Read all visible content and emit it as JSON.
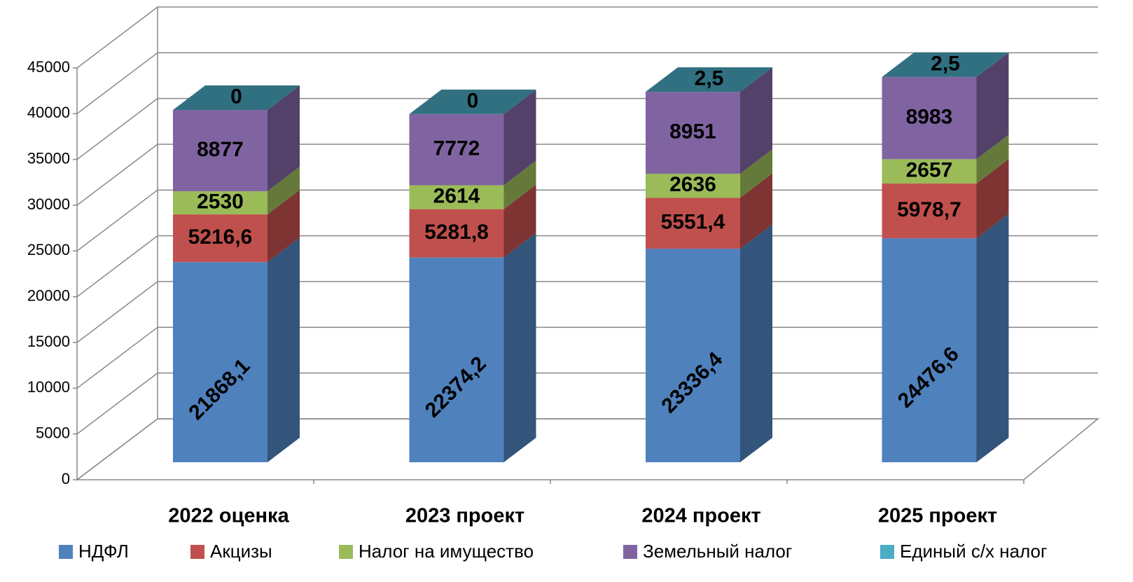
{
  "chart_data": {
    "type": "bar3d-stacked",
    "categories": [
      "2022 оценка",
      "2023 проект",
      "2024 проект",
      "2025 проект"
    ],
    "series": [
      {
        "name": "НДФЛ",
        "color": "#4f81bd",
        "values": [
          21868.1,
          22374.2,
          23336.4,
          24476.6
        ],
        "value_labels": [
          "21868,1",
          "22374,2",
          "23336,4",
          "24476,6"
        ]
      },
      {
        "name": "Акцизы",
        "color": "#c0504d",
        "values": [
          5216.6,
          5281.8,
          5551.4,
          5978.7
        ],
        "value_labels": [
          "5216,6",
          "5281,8",
          "5551,4",
          "5978,7"
        ]
      },
      {
        "name": "Налог на имущество",
        "color": "#9bbb59",
        "values": [
          2530,
          2614,
          2636,
          2657
        ]
      },
      {
        "name": "Земельный налог",
        "color": "#8064a2",
        "values": [
          8877,
          7772,
          8951,
          8983
        ]
      },
      {
        "name": "Единый с/х налог",
        "color": "#4bacc6",
        "values": [
          0,
          0,
          2.5,
          2.5
        ],
        "value_labels": [
          "0",
          "0",
          "2,5",
          "2,5"
        ]
      }
    ],
    "ylim": [
      0,
      45000
    ],
    "yticks": [
      0,
      5000,
      10000,
      15000,
      20000,
      25000,
      30000,
      35000,
      40000,
      45000
    ],
    "grid": true
  }
}
